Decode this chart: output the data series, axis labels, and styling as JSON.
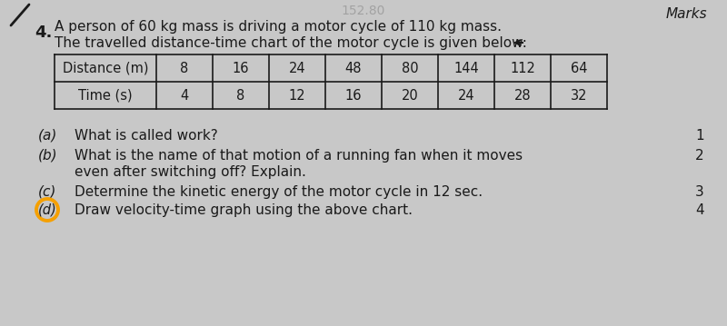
{
  "question_number": "4.",
  "marks_label": "Marks",
  "header_line1": "A person of 60 kg mass is driving a motor cycle of 110 kg mass.",
  "header_line2": "The travelled distance-time chart of the motor cycle is given below:",
  "table": {
    "row1_label": "Distance (m)",
    "row1_values": [
      "8",
      "16",
      "24",
      "48",
      "80",
      "144",
      "112",
      "64"
    ],
    "row2_label": "Time (s)",
    "row2_values": [
      "4",
      "8",
      "12",
      "16",
      "20",
      "24",
      "28",
      "32"
    ]
  },
  "questions": [
    {
      "label": "(a)",
      "text": "What is called work?",
      "mark": "1"
    },
    {
      "label": "(b)",
      "text": "What is the name of that motion of a running fan when it moves",
      "mark": "2"
    },
    {
      "label": "",
      "text": "even after switching off? Explain.",
      "mark": ""
    },
    {
      "label": "(c)",
      "text": "Determine the kinetic energy of the motor cycle in 12 sec.",
      "mark": "3"
    },
    {
      "label": "(d)",
      "text": "Draw velocity-time graph using the above chart.",
      "mark": "4",
      "circle_d": true
    }
  ],
  "bg_color": "#c8c8c8",
  "text_color": "#1a1a1a",
  "table_line_color": "#1a1a1a",
  "circle_color": "#f5a000",
  "watermark_text": "152.80",
  "fig_width": 8.0,
  "fig_height": 3.59,
  "dpi": 100
}
